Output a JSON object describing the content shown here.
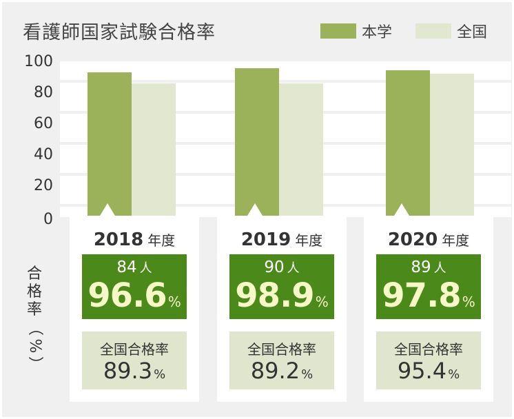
{
  "title": "看護師国家試験合格率",
  "legend": [
    {
      "label": "本学",
      "color": "#9cb25a"
    },
    {
      "label": "全国",
      "color": "#e1e8cf"
    }
  ],
  "y_axis_label": "合格率（%）",
  "colors": {
    "background": "#f0f0f0",
    "plot": "#ffffff",
    "our_box": "#4b8a1a",
    "our_rate_text": "#f6f8c8",
    "national_box": "#dfe6cd"
  },
  "chart_data": {
    "type": "bar",
    "title": "看護師国家試験合格率",
    "ylabel": "合格率（%）",
    "ylim": [
      0,
      100
    ],
    "yticks": [
      "100",
      "80",
      "60",
      "40",
      "20",
      "0"
    ],
    "grid": true,
    "legend_position": "top-right",
    "categories": [
      "2018",
      "2019",
      "2020"
    ],
    "series": [
      {
        "name": "本学",
        "values": [
          96.6,
          98.9,
          97.8
        ]
      },
      {
        "name": "全国",
        "values": [
          89.3,
          89.2,
          95.4
        ]
      }
    ]
  },
  "cards": [
    {
      "year": "2018",
      "year_unit": "年度",
      "count": "84",
      "count_unit": "人",
      "rate": "96.6",
      "rate_unit": "%",
      "national_label": "全国合格率",
      "national_rate": "89.3",
      "national_unit": "%"
    },
    {
      "year": "2019",
      "year_unit": "年度",
      "count": "90",
      "count_unit": "人",
      "rate": "98.9",
      "rate_unit": "%",
      "national_label": "全国合格率",
      "national_rate": "89.2",
      "national_unit": "%"
    },
    {
      "year": "2020",
      "year_unit": "年度",
      "count": "89",
      "count_unit": "人",
      "rate": "97.8",
      "rate_unit": "%",
      "national_label": "全国合格率",
      "national_rate": "95.4",
      "national_unit": "%"
    }
  ]
}
